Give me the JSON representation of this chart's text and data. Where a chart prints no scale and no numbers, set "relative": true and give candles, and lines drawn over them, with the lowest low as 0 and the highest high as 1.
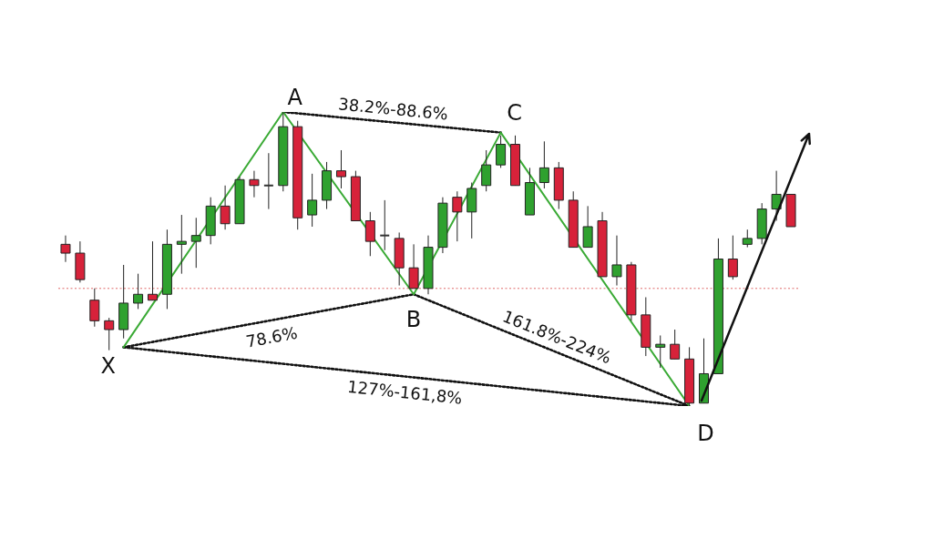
{
  "chart_data": {
    "type": "candlestick",
    "relative": true,
    "legend": false,
    "categories": [
      null,
      null,
      null,
      null,
      null,
      null,
      null,
      null,
      null,
      null,
      null,
      null,
      null,
      null,
      null,
      null,
      null,
      null,
      null,
      null,
      null,
      null,
      null,
      null,
      null,
      null,
      null,
      null,
      null,
      null,
      null,
      null,
      null,
      null,
      null,
      null,
      null,
      null,
      null,
      null,
      null,
      null,
      null,
      null,
      null,
      null,
      null,
      null,
      null,
      null,
      null
    ],
    "ohlc": [
      [
        0.55,
        0.58,
        0.49,
        0.52
      ],
      [
        0.52,
        0.56,
        0.42,
        0.43
      ],
      [
        0.36,
        0.4,
        0.27,
        0.29
      ],
      [
        0.29,
        0.3,
        0.19,
        0.26
      ],
      [
        0.26,
        0.48,
        0.23,
        0.35
      ],
      [
        0.35,
        0.45,
        0.33,
        0.38
      ],
      [
        0.38,
        0.56,
        0.36,
        0.36
      ],
      [
        0.38,
        0.6,
        0.33,
        0.55
      ],
      [
        0.55,
        0.65,
        0.45,
        0.56
      ],
      [
        0.56,
        0.64,
        0.47,
        0.58
      ],
      [
        0.58,
        0.71,
        0.55,
        0.68
      ],
      [
        0.68,
        0.75,
        0.6,
        0.62
      ],
      [
        0.62,
        0.78,
        0.62,
        0.77
      ],
      [
        0.77,
        0.8,
        0.71,
        0.75
      ],
      [
        0.75,
        0.86,
        0.67,
        0.75
      ],
      [
        0.75,
        1,
        0.73,
        0.95
      ],
      [
        0.95,
        0.97,
        0.6,
        0.64
      ],
      [
        0.65,
        0.79,
        0.61,
        0.7
      ],
      [
        0.7,
        0.83,
        0.67,
        0.8
      ],
      [
        0.8,
        0.87,
        0.74,
        0.78
      ],
      [
        0.78,
        0.8,
        0.63,
        0.63
      ],
      [
        0.63,
        0.66,
        0.51,
        0.56
      ],
      [
        0.58,
        0.7,
        0.53,
        0.58
      ],
      [
        0.57,
        0.59,
        0.41,
        0.47
      ],
      [
        0.47,
        0.55,
        0.4,
        0.4
      ],
      [
        0.4,
        0.58,
        0.38,
        0.54
      ],
      [
        0.54,
        0.71,
        0.52,
        0.69
      ],
      [
        0.71,
        0.73,
        0.56,
        0.66
      ],
      [
        0.66,
        0.76,
        0.57,
        0.74
      ],
      [
        0.75,
        0.87,
        0.73,
        0.82
      ],
      [
        0.82,
        0.92,
        0.81,
        0.89
      ],
      [
        0.89,
        0.92,
        0.75,
        0.75
      ],
      [
        0.65,
        0.81,
        0.65,
        0.76
      ],
      [
        0.76,
        0.9,
        0.74,
        0.81
      ],
      [
        0.81,
        0.83,
        0.67,
        0.7
      ],
      [
        0.7,
        0.73,
        0.54,
        0.54
      ],
      [
        0.54,
        0.68,
        0.54,
        0.61
      ],
      [
        0.63,
        0.66,
        0.44,
        0.44
      ],
      [
        0.44,
        0.58,
        0.41,
        0.48
      ],
      [
        0.48,
        0.49,
        0.29,
        0.31
      ],
      [
        0.31,
        0.37,
        0.17,
        0.2
      ],
      [
        0.2,
        0.24,
        0.13,
        0.21
      ],
      [
        0.21,
        0.26,
        0.16,
        0.16
      ],
      [
        0.16,
        0.2,
        0,
        0.01
      ],
      [
        0.01,
        0.23,
        0.01,
        0.11
      ],
      [
        0.11,
        0.57,
        0.11,
        0.5
      ],
      [
        0.5,
        0.58,
        0.43,
        0.44
      ],
      [
        0.55,
        0.6,
        0.54,
        0.57
      ],
      [
        0.57,
        0.69,
        0.55,
        0.67
      ],
      [
        0.67,
        0.8,
        0.63,
        0.72
      ],
      [
        0.72,
        0.72,
        0.61,
        0.61
      ]
    ],
    "colors": [
      "#d7223a",
      "#d7223a",
      "#d7223a",
      "#d7223a",
      "#2fa12f",
      "#2fa12f",
      "#d7223a",
      "#2fa12f",
      "#2fa12f",
      "#2fa12f",
      "#2fa12f",
      "#d7223a",
      "#2fa12f",
      "#d7223a",
      "#333333",
      "#2fa12f",
      "#d7223a",
      "#2fa12f",
      "#2fa12f",
      "#d7223a",
      "#d7223a",
      "#d7223a",
      "#333333",
      "#d7223a",
      "#d7223a",
      "#2fa12f",
      "#2fa12f",
      "#d7223a",
      "#2fa12f",
      "#2fa12f",
      "#2fa12f",
      "#d7223a",
      "#2fa12f",
      "#2fa12f",
      "#d7223a",
      "#d7223a",
      "#2fa12f",
      "#d7223a",
      "#2fa12f",
      "#d7223a",
      "#d7223a",
      "#2fa12f",
      "#d7223a",
      "#d7223a",
      "#2fa12f",
      "#2fa12f",
      "#d7223a",
      "#2fa12f",
      "#2fa12f",
      "#2fa12f",
      "#d7223a"
    ],
    "series": [
      {
        "type": "line",
        "color": "#3aaa35",
        "line_style": "solid",
        "values": [
          null,
          null,
          null,
          null,
          0.2,
          null,
          null,
          null,
          null,
          null,
          null,
          null,
          null,
          null,
          null,
          1,
          null,
          null,
          null,
          null,
          null,
          null,
          null,
          null,
          0.38,
          null,
          null,
          null,
          null,
          null,
          0.93,
          null,
          null,
          null,
          null,
          null,
          null,
          null,
          null,
          null,
          null,
          null,
          null,
          0,
          null,
          null,
          null,
          null,
          null,
          null,
          null
        ]
      },
      {
        "type": "line",
        "color": "#111111",
        "line_style": "dotted",
        "values": [
          null,
          null,
          null,
          null,
          null,
          null,
          null,
          null,
          null,
          null,
          null,
          null,
          null,
          null,
          null,
          1,
          null,
          null,
          null,
          null,
          null,
          null,
          null,
          null,
          null,
          null,
          null,
          null,
          null,
          null,
          0.93,
          null,
          null,
          null,
          null,
          null,
          null,
          null,
          null,
          null,
          null,
          null,
          null,
          null,
          null,
          null,
          null,
          null,
          null,
          null,
          null
        ]
      },
      {
        "type": "line",
        "color": "#111111",
        "line_style": "dotted",
        "values": [
          null,
          null,
          null,
          null,
          0.2,
          null,
          null,
          null,
          null,
          null,
          null,
          null,
          null,
          null,
          null,
          null,
          null,
          null,
          null,
          null,
          null,
          null,
          null,
          null,
          0.38,
          null,
          null,
          null,
          null,
          null,
          null,
          null,
          null,
          null,
          null,
          null,
          null,
          null,
          null,
          null,
          null,
          null,
          null,
          null,
          null,
          null,
          null,
          null,
          null,
          null,
          null
        ]
      },
      {
        "type": "line",
        "color": "#111111",
        "line_style": "dotted",
        "values": [
          null,
          null,
          null,
          null,
          null,
          null,
          null,
          null,
          null,
          null,
          null,
          null,
          null,
          null,
          null,
          null,
          null,
          null,
          null,
          null,
          null,
          null,
          null,
          null,
          0.38,
          null,
          null,
          null,
          null,
          null,
          null,
          null,
          null,
          null,
          null,
          null,
          null,
          null,
          null,
          null,
          null,
          null,
          null,
          0,
          null,
          null,
          null,
          null,
          null,
          null,
          null
        ]
      },
      {
        "type": "line",
        "color": "#111111",
        "line_style": "dotted",
        "values": [
          null,
          null,
          null,
          null,
          0.2,
          null,
          null,
          null,
          null,
          null,
          null,
          null,
          null,
          null,
          null,
          null,
          null,
          null,
          null,
          null,
          null,
          null,
          null,
          null,
          null,
          null,
          null,
          null,
          null,
          null,
          null,
          null,
          null,
          null,
          null,
          null,
          null,
          null,
          null,
          null,
          null,
          null,
          null,
          0,
          null,
          null,
          null,
          null,
          null,
          null,
          null
        ]
      }
    ],
    "ref_lines": [
      {
        "axis": "y",
        "value": 0.4,
        "color": "#e06a6a",
        "line_style": "dotted"
      }
    ],
    "annotations": [
      "X",
      "A",
      "B",
      "C",
      "D",
      "38.2%-88.6%",
      "78.6%",
      "161.8%-224%",
      "127%-161,8%"
    ]
  }
}
